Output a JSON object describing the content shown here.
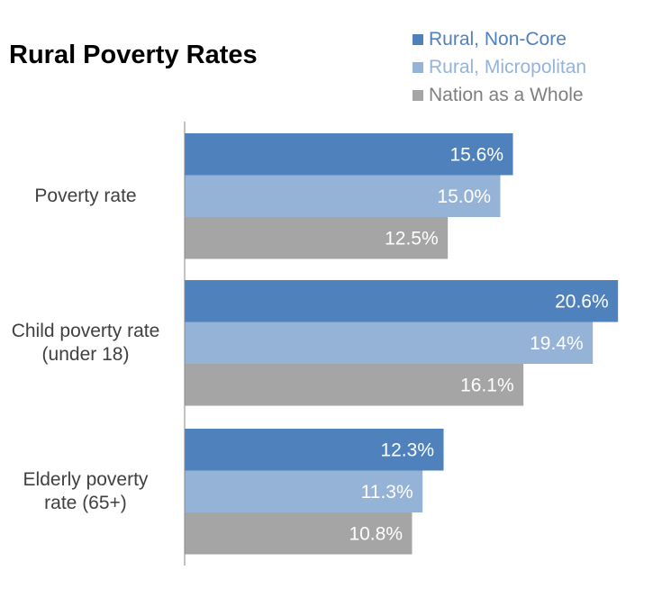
{
  "chart_data": {
    "type": "bar",
    "orientation": "horizontal",
    "title": "Rural Poverty Rates",
    "categories": [
      "Poverty rate",
      "Child poverty rate (under 18)",
      "Elderly poverty rate (65+)"
    ],
    "category_lines": [
      [
        "Poverty rate"
      ],
      [
        "Child poverty rate",
        "(under 18)"
      ],
      [
        "Elderly poverty",
        "rate (65+)"
      ]
    ],
    "series": [
      {
        "name": "Rural, Non-Core",
        "color": "#4F81BD",
        "values": [
          15.6,
          20.6,
          12.3
        ],
        "labels": [
          "15.6%",
          "20.6%",
          "12.3%"
        ]
      },
      {
        "name": "Rural, Micropolitan",
        "color": "#95B3D7",
        "values": [
          15.0,
          19.4,
          11.3
        ],
        "labels": [
          "15.0%",
          "19.4%",
          "11.3%"
        ]
      },
      {
        "name": "Nation as a Whole",
        "color": "#A5A5A5",
        "values": [
          12.5,
          16.1,
          10.8
        ],
        "labels": [
          "12.5%",
          "16.1%",
          "10.8%"
        ]
      }
    ],
    "xlim": [
      0,
      22
    ],
    "grid": false,
    "legend_position": "top-right",
    "data_labels": "inside-end"
  }
}
